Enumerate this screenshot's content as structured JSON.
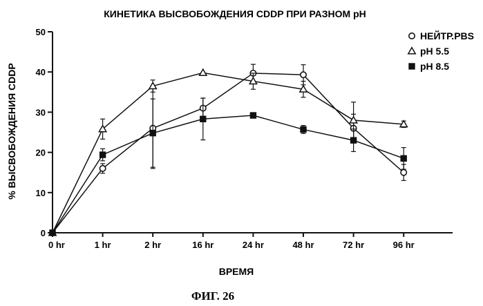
{
  "chart_data": {
    "type": "line",
    "title": "КИНЕТИКА ВЫСВОБОЖДЕНИЯ CDDP  ПРИ РАЗНОМ pH",
    "xlabel": "ВРЕМЯ",
    "ylabel": "% ВЫСВОБОЖДЕНИЯ  CDDP",
    "categories": [
      "0 hr",
      "1 hr",
      "2 hr",
      "16 hr",
      "24 hr",
      "48 hr",
      "72 hr",
      "96 hr"
    ],
    "ylim": [
      0,
      50
    ],
    "yticks": [
      0,
      10,
      20,
      30,
      40,
      50
    ],
    "grid": false,
    "legend_position": "top-right",
    "series": [
      {
        "name": "НЕЙТР.PBS",
        "marker": "open-circle",
        "values": [
          0,
          16,
          26,
          31,
          39.7,
          39.3,
          26,
          15
        ],
        "errors": [
          0,
          1.2,
          10,
          2.5,
          2.2,
          2.5,
          3.5,
          2
        ]
      },
      {
        "name": "pH 5.5",
        "marker": "open-triangle",
        "values": [
          0,
          25.8,
          36.5,
          39.8,
          37.7,
          35.7,
          28,
          27
        ],
        "errors": [
          0,
          2.5,
          1.5,
          0,
          2,
          2,
          4.5,
          0.8
        ]
      },
      {
        "name": "pH 8.5",
        "marker": "filled-square",
        "values": [
          0,
          19.4,
          24.8,
          28.3,
          29.2,
          25.7,
          23,
          18.5
        ],
        "errors": [
          0,
          1.5,
          8.5,
          5.2,
          0.5,
          1,
          2.8,
          2.7
        ]
      }
    ]
  },
  "caption": "ФИГ. 26"
}
